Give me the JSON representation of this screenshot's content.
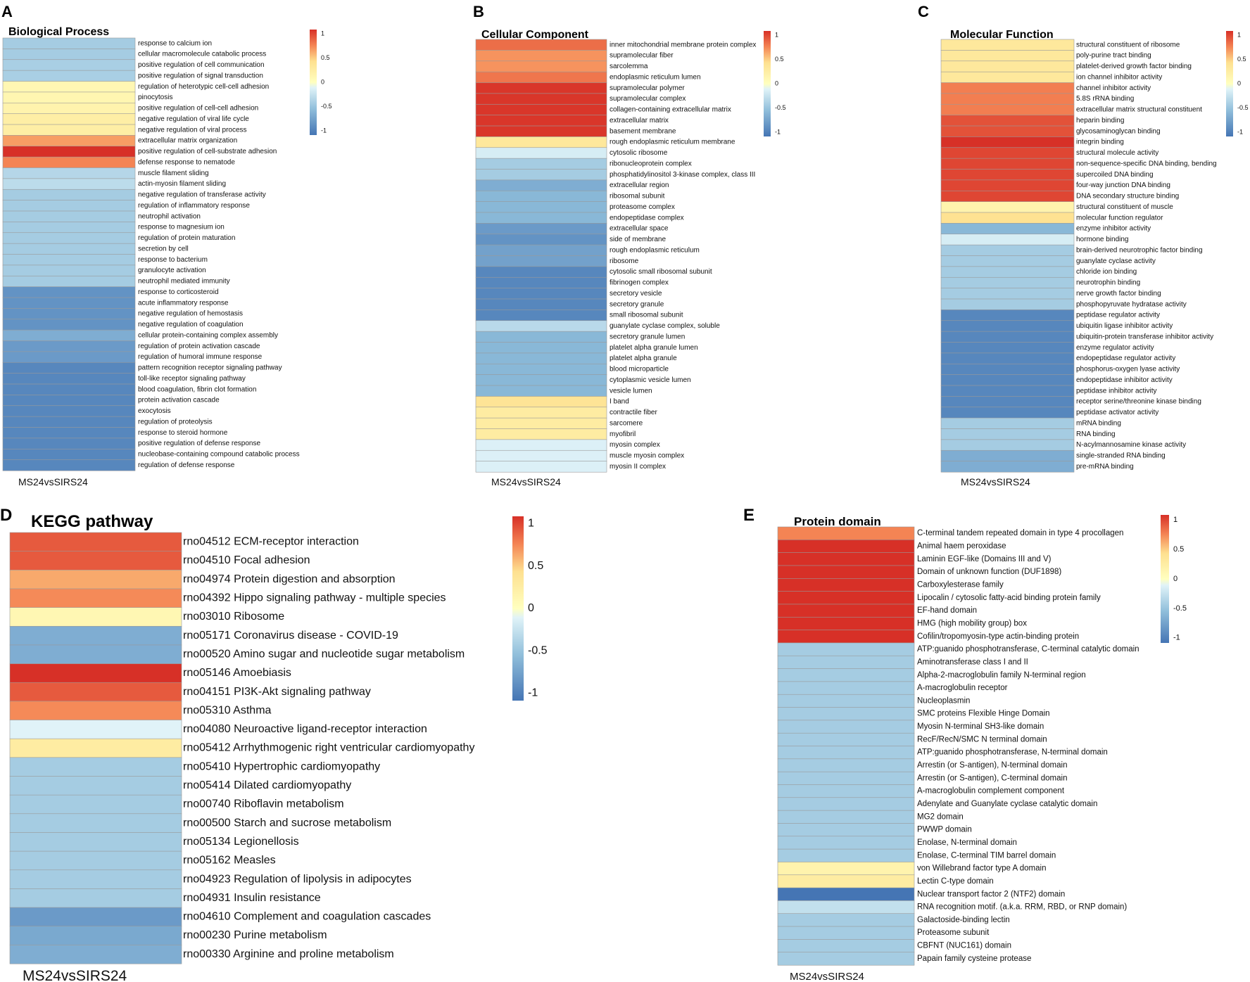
{
  "chart_data": [
    {
      "id": "A",
      "panel_letter": "A",
      "type": "heatmap",
      "title": "Biological Process",
      "column_label": "MS24vsSIRS24",
      "scale": {
        "ticks": [
          1,
          0.5,
          0,
          -0.5,
          -1
        ],
        "range": [
          -1,
          1
        ]
      },
      "rows": [
        {
          "label": "response to calcium ion",
          "value": -0.4
        },
        {
          "label": "cellular macromolecule catabolic process",
          "value": -0.4
        },
        {
          "label": "positive regulation of cell communication",
          "value": -0.38
        },
        {
          "label": "positive regulation of signal transduction",
          "value": -0.38
        },
        {
          "label": "regulation of heterotypic cell-cell adhesion",
          "value": 0.1
        },
        {
          "label": "pinocytosis",
          "value": 0.12
        },
        {
          "label": "positive regulation of cell-cell adhesion",
          "value": 0.15
        },
        {
          "label": "negative regulation of viral life cycle",
          "value": 0.22
        },
        {
          "label": "negative regulation of viral process",
          "value": 0.22
        },
        {
          "label": "extracellular matrix organization",
          "value": 0.62
        },
        {
          "label": "positive regulation of cell-substrate adhesion",
          "value": 1.0
        },
        {
          "label": "defense response to nematode",
          "value": 0.7
        },
        {
          "label": "muscle filament sliding",
          "value": -0.32
        },
        {
          "label": "actin-myosin filament sliding",
          "value": -0.28
        },
        {
          "label": "negative regulation of transferase activity",
          "value": -0.4
        },
        {
          "label": "regulation of inflammatory response",
          "value": -0.4
        },
        {
          "label": "neutrophil activation",
          "value": -0.4
        },
        {
          "label": "response to magnesium ion",
          "value": -0.4
        },
        {
          "label": "regulation of protein maturation",
          "value": -0.4
        },
        {
          "label": "secretion by cell",
          "value": -0.4
        },
        {
          "label": "response to bacterium",
          "value": -0.4
        },
        {
          "label": "granulocyte activation",
          "value": -0.4
        },
        {
          "label": "neutrophil mediated immunity",
          "value": -0.4
        },
        {
          "label": "response to corticosteroid",
          "value": -0.8
        },
        {
          "label": "acute inflammatory response",
          "value": -0.8
        },
        {
          "label": "negative regulation of hemostasis",
          "value": -0.8
        },
        {
          "label": "negative regulation of coagulation",
          "value": -0.8
        },
        {
          "label": "cellular protein-containing complex assembly",
          "value": -0.62
        },
        {
          "label": "regulation of protein activation cascade",
          "value": -0.75
        },
        {
          "label": "regulation of humoral immune response",
          "value": -0.75
        },
        {
          "label": "pattern recognition receptor signaling pathway",
          "value": -0.88
        },
        {
          "label": "toll-like receptor signaling pathway",
          "value": -0.88
        },
        {
          "label": "blood coagulation, fibrin clot formation",
          "value": -0.88
        },
        {
          "label": "protein activation cascade",
          "value": -0.88
        },
        {
          "label": "exocytosis",
          "value": -0.88
        },
        {
          "label": "regulation of proteolysis",
          "value": -0.88
        },
        {
          "label": "response to steroid hormone",
          "value": -0.88
        },
        {
          "label": "positive regulation of defense response",
          "value": -0.88
        },
        {
          "label": "nucleobase-containing compound catabolic process",
          "value": -0.88
        },
        {
          "label": "regulation of defense response",
          "value": -0.88
        }
      ]
    },
    {
      "id": "B",
      "panel_letter": "B",
      "type": "heatmap",
      "title": "Cellular Component",
      "column_label": "MS24vsSIRS24",
      "scale": {
        "ticks": [
          1,
          0.5,
          0,
          -0.5,
          -1
        ],
        "range": [
          -1,
          1
        ]
      },
      "rows": [
        {
          "label": "inner mitochondrial membrane protein complex",
          "value": 0.78
        },
        {
          "label": "supramolecular fiber",
          "value": 0.65
        },
        {
          "label": "sarcolemma",
          "value": 0.65
        },
        {
          "label": "endoplasmic reticulum lumen",
          "value": 0.75
        },
        {
          "label": "supramolecular polymer",
          "value": 0.98
        },
        {
          "label": "supramolecular complex",
          "value": 0.98
        },
        {
          "label": "collagen-containing extracellular matrix",
          "value": 0.98
        },
        {
          "label": "extracellular matrix",
          "value": 0.98
        },
        {
          "label": "basement membrane",
          "value": 0.98
        },
        {
          "label": "rough endoplasmic reticulum membrane",
          "value": 0.3
        },
        {
          "label": "cytosolic ribosome",
          "value": -0.15
        },
        {
          "label": "ribonucleoprotein complex",
          "value": -0.4
        },
        {
          "label": "phosphatidylinositol 3-kinase complex, class III",
          "value": -0.4
        },
        {
          "label": "extracellular region",
          "value": -0.62
        },
        {
          "label": "ribosomal subunit",
          "value": -0.55
        },
        {
          "label": "proteasome complex",
          "value": -0.55
        },
        {
          "label": "endopeptidase complex",
          "value": -0.55
        },
        {
          "label": "extracellular space",
          "value": -0.75
        },
        {
          "label": "side of membrane",
          "value": -0.8
        },
        {
          "label": "rough endoplasmic reticulum",
          "value": -0.7
        },
        {
          "label": "ribosome",
          "value": -0.7
        },
        {
          "label": "cytosolic small ribosomal subunit",
          "value": -0.88
        },
        {
          "label": "fibrinogen complex",
          "value": -0.88
        },
        {
          "label": "secretory vesicle",
          "value": -0.88
        },
        {
          "label": "secretory granule",
          "value": -0.88
        },
        {
          "label": "small ribosomal subunit",
          "value": -0.88
        },
        {
          "label": "guanylate cyclase complex, soluble",
          "value": -0.3
        },
        {
          "label": "secretory granule lumen",
          "value": -0.55
        },
        {
          "label": "platelet alpha granule lumen",
          "value": -0.55
        },
        {
          "label": "platelet alpha granule",
          "value": -0.55
        },
        {
          "label": "blood microparticle",
          "value": -0.55
        },
        {
          "label": "cytoplasmic vesicle lumen",
          "value": -0.55
        },
        {
          "label": "vesicle lumen",
          "value": -0.55
        },
        {
          "label": "I band",
          "value": 0.35
        },
        {
          "label": "contractile fiber",
          "value": 0.25
        },
        {
          "label": "sarcomere",
          "value": 0.25
        },
        {
          "label": "myofibril",
          "value": 0.25
        },
        {
          "label": "myosin complex",
          "value": -0.12
        },
        {
          "label": "muscle myosin complex",
          "value": -0.12
        },
        {
          "label": "myosin II complex",
          "value": -0.12
        }
      ]
    },
    {
      "id": "C",
      "panel_letter": "C",
      "type": "heatmap",
      "title": "Molecular Function",
      "column_label": "MS24vsSIRS24",
      "scale": {
        "ticks": [
          1,
          0.5,
          0,
          -0.5,
          -1
        ],
        "range": [
          -1,
          1
        ]
      },
      "rows": [
        {
          "label": "structural constituent of ribosome",
          "value": 0.3
        },
        {
          "label": "poly-purine tract binding",
          "value": 0.3
        },
        {
          "label": "platelet-derived growth factor binding",
          "value": 0.3
        },
        {
          "label": "ion channel inhibitor activity",
          "value": 0.3
        },
        {
          "label": "channel inhibitor activity",
          "value": 0.72
        },
        {
          "label": "5.8S rRNA binding",
          "value": 0.72
        },
        {
          "label": "extracellular matrix structural constituent",
          "value": 0.72
        },
        {
          "label": "heparin binding",
          "value": 0.88
        },
        {
          "label": "glycosaminoglycan binding",
          "value": 0.88
        },
        {
          "label": "integrin binding",
          "value": 1.0
        },
        {
          "label": "structural molecule activity",
          "value": 0.92
        },
        {
          "label": "non-sequence-specific DNA binding, bending",
          "value": 0.92
        },
        {
          "label": "supercoiled DNA binding",
          "value": 0.92
        },
        {
          "label": "four-way junction DNA binding",
          "value": 0.92
        },
        {
          "label": "DNA secondary structure binding",
          "value": 0.92
        },
        {
          "label": "structural constituent of muscle",
          "value": 0.15
        },
        {
          "label": "molecular function regulator",
          "value": 0.38
        },
        {
          "label": "enzyme inhibitor activity",
          "value": -0.55
        },
        {
          "label": "hormone binding",
          "value": -0.15
        },
        {
          "label": "brain-derived neurotrophic factor binding",
          "value": -0.4
        },
        {
          "label": "guanylate cyclase activity",
          "value": -0.4
        },
        {
          "label": "chloride ion binding",
          "value": -0.4
        },
        {
          "label": "neurotrophin binding",
          "value": -0.4
        },
        {
          "label": "nerve growth factor binding",
          "value": -0.4
        },
        {
          "label": "phosphopyruvate hydratase activity",
          "value": -0.4
        },
        {
          "label": "peptidase regulator activity",
          "value": -0.88
        },
        {
          "label": "ubiquitin ligase inhibitor activity",
          "value": -0.88
        },
        {
          "label": "ubiquitin-protein transferase inhibitor activity",
          "value": -0.88
        },
        {
          "label": "enzyme regulator activity",
          "value": -0.88
        },
        {
          "label": "endopeptidase regulator activity",
          "value": -0.88
        },
        {
          "label": "phosphorus-oxygen lyase activity",
          "value": -0.88
        },
        {
          "label": "endopeptidase inhibitor activity",
          "value": -0.88
        },
        {
          "label": "peptidase inhibitor activity",
          "value": -0.88
        },
        {
          "label": "receptor serine/threonine kinase binding",
          "value": -0.88
        },
        {
          "label": "peptidase activator activity",
          "value": -0.88
        },
        {
          "label": "mRNA binding",
          "value": -0.4
        },
        {
          "label": "RNA binding",
          "value": -0.4
        },
        {
          "label": "N-acylmannosamine kinase activity",
          "value": -0.4
        },
        {
          "label": "single-stranded RNA binding",
          "value": -0.62
        },
        {
          "label": "pre-mRNA binding",
          "value": -0.62
        }
      ]
    },
    {
      "id": "D",
      "panel_letter": "D",
      "type": "heatmap",
      "title": "KEGG pathway",
      "column_label": "MS24vsSIRS24",
      "scale": {
        "ticks": [
          1,
          0.5,
          0,
          -0.5,
          -1
        ],
        "range": [
          -1,
          1
        ]
      },
      "rows": [
        {
          "label": "rno04512 ECM-receptor interaction",
          "value": 0.85
        },
        {
          "label": "rno04510 Focal adhesion",
          "value": 0.85
        },
        {
          "label": "rno04974 Protein digestion and absorption",
          "value": 0.58
        },
        {
          "label": "rno04392 Hippo signaling pathway - multiple species",
          "value": 0.68
        },
        {
          "label": "rno03010 Ribosome",
          "value": 0.1
        },
        {
          "label": "rno05171 Coronavirus disease - COVID-19",
          "value": -0.62
        },
        {
          "label": "rno00520 Amino sugar and nucleotide sugar metabolism",
          "value": -0.62
        },
        {
          "label": "rno05146 Amoebiasis",
          "value": 1.0
        },
        {
          "label": "rno04151 PI3K-Akt signaling pathway",
          "value": 0.85
        },
        {
          "label": "rno05310 Asthma",
          "value": 0.68
        },
        {
          "label": "rno04080 Neuroactive ligand-receptor interaction",
          "value": -0.1
        },
        {
          "label": "rno05412 Arrhythmogenic right ventricular cardiomyopathy",
          "value": 0.25
        },
        {
          "label": "rno05410 Hypertrophic cardiomyopathy",
          "value": -0.4
        },
        {
          "label": "rno05414 Dilated cardiomyopathy",
          "value": -0.4
        },
        {
          "label": "rno00740 Riboflavin metabolism",
          "value": -0.4
        },
        {
          "label": "rno00500 Starch and sucrose metabolism",
          "value": -0.4
        },
        {
          "label": "rno05134 Legionellosis",
          "value": -0.4
        },
        {
          "label": "rno05162 Measles",
          "value": -0.4
        },
        {
          "label": "rno04923 Regulation of lipolysis in adipocytes",
          "value": -0.4
        },
        {
          "label": "rno04931 Insulin resistance",
          "value": -0.4
        },
        {
          "label": "rno04610 Complement and coagulation cascades",
          "value": -0.75
        },
        {
          "label": "rno00230 Purine metabolism",
          "value": -0.65
        },
        {
          "label": "rno00330 Arginine and proline metabolism",
          "value": -0.62
        }
      ]
    },
    {
      "id": "E",
      "panel_letter": "E",
      "type": "heatmap",
      "title": "Protein domain",
      "column_label": "MS24vsSIRS24",
      "scale": {
        "ticks": [
          1,
          0.5,
          0,
          -0.5,
          -1
        ],
        "range": [
          -1,
          1
        ]
      },
      "rows": [
        {
          "label": "C-terminal tandem repeated domain in type 4 procollagen",
          "value": 0.7
        },
        {
          "label": "Animal haem peroxidase",
          "value": 1.0
        },
        {
          "label": "Laminin EGF-like (Domains III and V)",
          "value": 1.0
        },
        {
          "label": "Domain of unknown function (DUF1898)",
          "value": 1.0
        },
        {
          "label": "Carboxylesterase family",
          "value": 1.0
        },
        {
          "label": "Lipocalin / cytosolic fatty-acid binding protein family",
          "value": 1.0
        },
        {
          "label": "EF-hand domain",
          "value": 1.0
        },
        {
          "label": "HMG (high mobility group) box",
          "value": 1.0
        },
        {
          "label": "Cofilin/tropomyosin-type actin-binding protein",
          "value": 1.0
        },
        {
          "label": "ATP:guanido phosphotransferase, C-terminal catalytic domain",
          "value": -0.4
        },
        {
          "label": "Aminotransferase class I and II",
          "value": -0.4
        },
        {
          "label": "Alpha-2-macroglobulin family N-terminal region",
          "value": -0.4
        },
        {
          "label": "A-macroglobulin receptor",
          "value": -0.4
        },
        {
          "label": "Nucleoplasmin",
          "value": -0.4
        },
        {
          "label": "SMC proteins Flexible Hinge Domain",
          "value": -0.4
        },
        {
          "label": "Myosin N-terminal SH3-like domain",
          "value": -0.4
        },
        {
          "label": "RecF/RecN/SMC N terminal domain",
          "value": -0.4
        },
        {
          "label": "ATP:guanido phosphotransferase, N-terminal domain",
          "value": -0.4
        },
        {
          "label": "Arrestin (or S-antigen), N-terminal domain",
          "value": -0.4
        },
        {
          "label": "Arrestin (or S-antigen), C-terminal domain",
          "value": -0.4
        },
        {
          "label": "A-macroglobulin complement component",
          "value": -0.4
        },
        {
          "label": "Adenylate and Guanylate cyclase catalytic domain",
          "value": -0.4
        },
        {
          "label": "MG2 domain",
          "value": -0.4
        },
        {
          "label": "PWWP domain",
          "value": -0.4
        },
        {
          "label": "Enolase, N-terminal domain",
          "value": -0.4
        },
        {
          "label": "Enolase, C-terminal TIM barrel domain",
          "value": -0.4
        },
        {
          "label": "von Willebrand factor type A domain",
          "value": 0.15
        },
        {
          "label": "Lectin C-type domain",
          "value": 0.25
        },
        {
          "label": "Nuclear transport factor 2 (NTF2) domain",
          "value": -1.0
        },
        {
          "label": "RNA recognition motif. (a.k.a. RRM, RBD, or RNP domain)",
          "value": -0.25
        },
        {
          "label": "Galactoside-binding lectin",
          "value": -0.4
        },
        {
          "label": "Proteasome subunit",
          "value": -0.4
        },
        {
          "label": "CBFNT (NUC161) domain",
          "value": -0.4
        },
        {
          "label": "Papain family cysteine protease",
          "value": -0.4
        }
      ]
    }
  ]
}
